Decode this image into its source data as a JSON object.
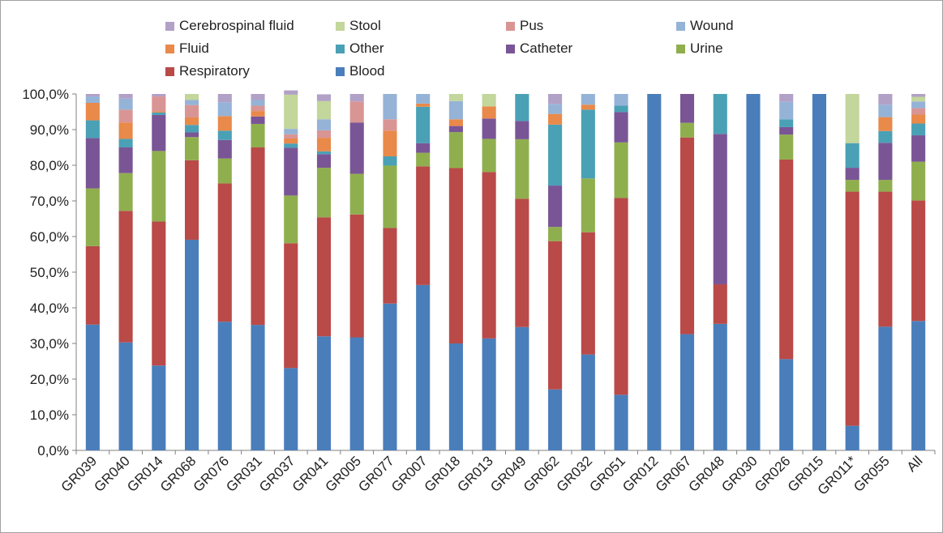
{
  "chart_data": {
    "type": "bar",
    "stacked": true,
    "categories": [
      "GR039",
      "GR040",
      "GR014",
      "GR068",
      "GR076",
      "GR031",
      "GR037",
      "GR041",
      "GR005",
      "GR077",
      "GR007",
      "GR018",
      "GR013",
      "GR049",
      "GR062",
      "GR032",
      "GR051",
      "GR012",
      "GR067",
      "GR048",
      "GR030",
      "GR026",
      "GR015",
      "GR011*",
      "GR055",
      "All"
    ],
    "y_ticks": [
      "0,0%",
      "10,0%",
      "20,0%",
      "30,0%",
      "40,0%",
      "50,0%",
      "60,0%",
      "70,0%",
      "80,0%",
      "90,0%",
      "100,0%"
    ],
    "ylim": [
      0,
      100
    ],
    "grid": false,
    "legend_position": "top",
    "series": [
      {
        "name": "Blood",
        "color": "#4a7ebb",
        "values": [
          35.3,
          30.3,
          23.8,
          59.1,
          36.1,
          35.2,
          23.1,
          32.0,
          31.7,
          41.2,
          46.4,
          30.0,
          31.4,
          34.6,
          17.1,
          26.9,
          15.6,
          100,
          32.6,
          35.5,
          100,
          25.6,
          100,
          6.9,
          34.7,
          36.3
        ]
      },
      {
        "name": "Respiratory",
        "color": "#b94a48",
        "values": [
          22.0,
          36.9,
          40.4,
          22.3,
          38.8,
          49.8,
          35.0,
          33.4,
          34.5,
          21.2,
          33.3,
          49.2,
          46.7,
          36.0,
          41.6,
          34.3,
          55.2,
          0,
          55.2,
          11.1,
          0,
          56.0,
          0,
          65.7,
          37.9,
          33.8
        ]
      },
      {
        "name": "Urine",
        "color": "#8faf4e",
        "values": [
          16.2,
          10.6,
          19.8,
          6.5,
          7.0,
          6.6,
          13.4,
          13.9,
          11.4,
          17.5,
          3.8,
          10.1,
          9.3,
          16.7,
          4.0,
          15.1,
          15.6,
          0,
          4.1,
          0,
          0,
          7.0,
          0,
          3.3,
          3.3,
          10.9
        ]
      },
      {
        "name": "Catheter",
        "color": "#7a5596",
        "values": [
          14.1,
          7.2,
          10.1,
          1.3,
          5.2,
          2.1,
          13.4,
          3.8,
          14.4,
          0,
          2.7,
          1.7,
          5.7,
          5.1,
          11.6,
          0,
          8.5,
          0,
          8.1,
          42.2,
          0,
          2.1,
          0,
          3.4,
          10.4,
          7.4
        ]
      },
      {
        "name": "Other",
        "color": "#4aa1b5",
        "values": [
          5.0,
          2.4,
          0.7,
          2.1,
          2.6,
          0,
          1.2,
          0.8,
          0,
          2.6,
          10.2,
          0,
          0,
          7.6,
          17.1,
          19.3,
          1.8,
          0,
          0,
          11.2,
          0,
          2.2,
          0,
          6.9,
          3.3,
          3.3
        ]
      },
      {
        "name": "Fluid",
        "color": "#e9894a",
        "values": [
          4.9,
          4.6,
          0.3,
          2.1,
          4.1,
          1.5,
          1.4,
          3.8,
          0,
          7.2,
          0.9,
          1.9,
          3.4,
          0,
          3.0,
          1.4,
          0,
          0,
          0,
          0,
          0,
          0,
          0,
          0,
          3.9,
          2.5
        ]
      },
      {
        "name": "Pus",
        "color": "#d99594",
        "values": [
          0,
          3.6,
          4.2,
          3.5,
          0,
          1.5,
          1.2,
          2.1,
          5.9,
          3.2,
          0,
          0,
          0,
          0,
          0,
          0,
          0,
          0,
          0,
          0,
          0,
          0,
          0,
          0,
          0,
          1.8
        ]
      },
      {
        "name": "Wound",
        "color": "#95b3d7",
        "values": [
          1.8,
          3.1,
          0,
          1.4,
          3.9,
          1.6,
          1.5,
          3.1,
          0,
          7.1,
          2.7,
          5.1,
          0,
          0,
          2.8,
          3.0,
          3.3,
          0,
          0,
          0,
          0,
          4.9,
          0,
          0,
          3.5,
          1.9
        ]
      },
      {
        "name": "Stool",
        "color": "#c3d69b",
        "values": [
          0,
          0,
          0,
          1.7,
          0,
          0,
          9.6,
          5.1,
          0,
          0,
          0,
          2.0,
          3.5,
          0,
          0,
          0,
          0,
          0,
          0,
          0,
          0,
          0,
          0,
          13.8,
          0,
          1.3
        ]
      },
      {
        "name": "Cerebrospinal fluid",
        "color": "#b2a1c7",
        "values": [
          0.7,
          1.3,
          0.7,
          0,
          2.3,
          1.7,
          1.2,
          1.9,
          2.1,
          0,
          0,
          0,
          0,
          0,
          2.8,
          0,
          0,
          0,
          0,
          0,
          0,
          2.2,
          0,
          0,
          3.0,
          0.8
        ]
      }
    ]
  },
  "legend": {
    "items": [
      {
        "label": "Cerebrospinal fluid",
        "color": "#b2a1c7"
      },
      {
        "label": "Stool",
        "color": "#c3d69b"
      },
      {
        "label": "Pus",
        "color": "#d99594"
      },
      {
        "label": "Wound",
        "color": "#95b3d7"
      },
      {
        "label": "Fluid",
        "color": "#e9894a"
      },
      {
        "label": "Other",
        "color": "#4aa1b5"
      },
      {
        "label": "Catheter",
        "color": "#7a5596"
      },
      {
        "label": "Urine",
        "color": "#8faf4e"
      },
      {
        "label": "Respiratory",
        "color": "#b94a48"
      },
      {
        "label": "Blood",
        "color": "#4a7ebb"
      }
    ]
  }
}
